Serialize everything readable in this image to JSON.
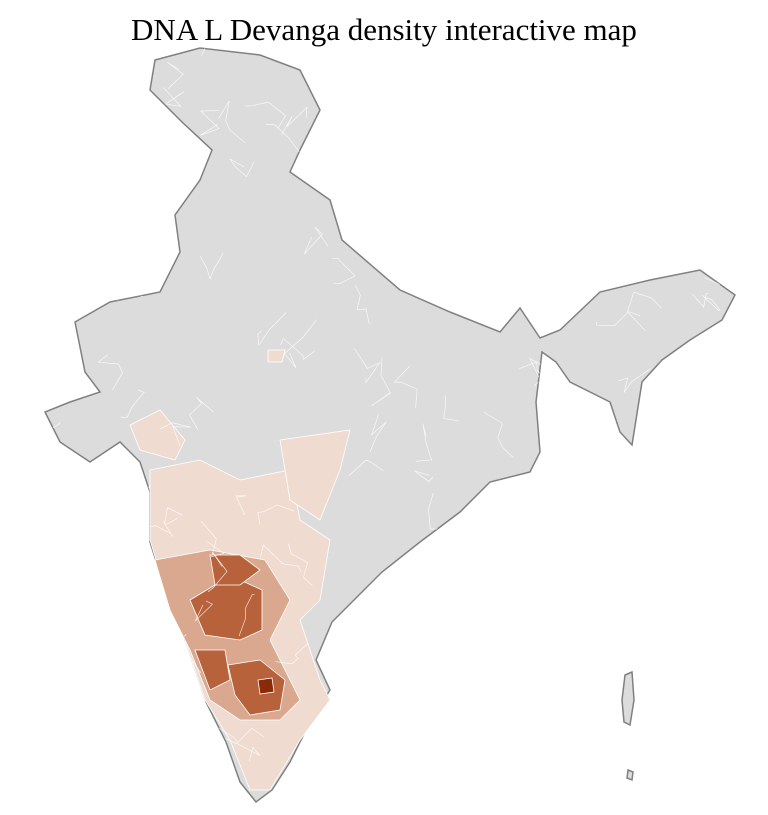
{
  "title": "DNA L Devanga density interactive map",
  "colors": {
    "no_data": "#dcdcdc",
    "border": "#808080",
    "district_line": "#ffffff",
    "level_1": "#f0dbd0",
    "level_2": "#d9a88f",
    "level_3": "#b8623c",
    "level_4": "#8a2a08"
  }
}
